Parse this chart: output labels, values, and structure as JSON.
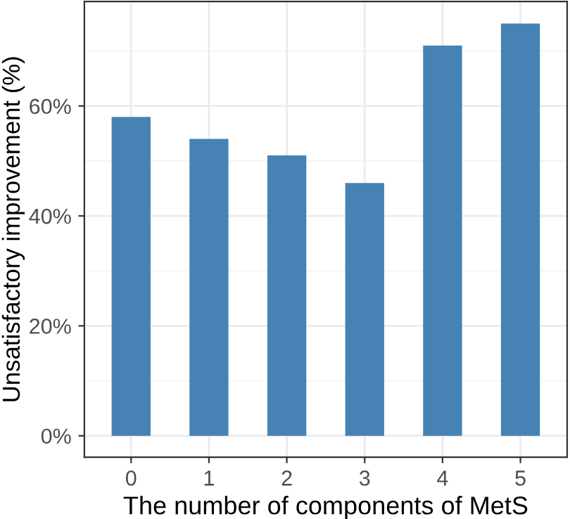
{
  "chart_data": {
    "type": "bar",
    "xlabel": "The number of components of MetS",
    "ylabel": "Unsatisfactory improvement (%)",
    "categories": [
      "0",
      "1",
      "2",
      "3",
      "4",
      "5"
    ],
    "values": [
      58,
      54,
      51,
      46,
      71,
      75
    ],
    "color": "#4682b4",
    "ylim": [
      -3.9,
      79
    ],
    "yticks": [
      {
        "value": 0,
        "label": "0%"
      },
      {
        "value": 20,
        "label": "20%"
      },
      {
        "value": 40,
        "label": "40%"
      },
      {
        "value": 60,
        "label": "60%"
      }
    ],
    "grid": true
  }
}
